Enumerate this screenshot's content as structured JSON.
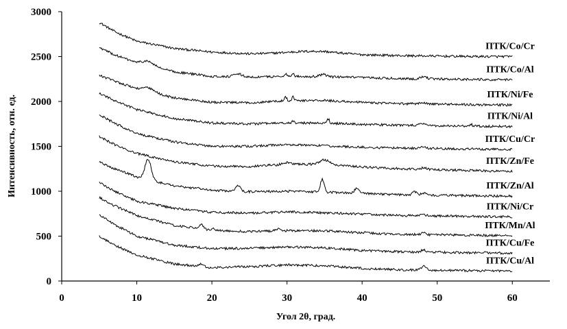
{
  "chart_data": {
    "type": "line",
    "title": "",
    "xlabel": "Угол 2θ, град.",
    "ylabel": "Интенсивность, отн. ед.",
    "xlim": [
      0,
      65
    ],
    "ylim": [
      0,
      3000
    ],
    "x_ticks": [
      0,
      10,
      20,
      30,
      40,
      50,
      60
    ],
    "y_ticks": [
      0,
      500,
      1000,
      1500,
      2000,
      2500,
      3000
    ],
    "grid": false,
    "legend": "labels placed at right end of each curve",
    "x_start": 5,
    "x_end": 60,
    "series": [
      {
        "name": "ПТК/Co/Cr",
        "background": [
          [
            5,
            2880
          ],
          [
            7,
            2780
          ],
          [
            10,
            2670
          ],
          [
            15,
            2590
          ],
          [
            20,
            2550
          ],
          [
            25,
            2530
          ],
          [
            30,
            2535
          ],
          [
            35,
            2540
          ],
          [
            40,
            2520
          ],
          [
            45,
            2510
          ],
          [
            50,
            2505
          ],
          [
            55,
            2500
          ],
          [
            60,
            2500
          ]
        ],
        "peaks": [
          [
            33,
            20,
            3
          ]
        ]
      },
      {
        "name": "ПТК/Co/Al",
        "background": [
          [
            5,
            2600
          ],
          [
            7,
            2520
          ],
          [
            10,
            2430
          ],
          [
            15,
            2330
          ],
          [
            20,
            2280
          ],
          [
            25,
            2270
          ],
          [
            30,
            2280
          ],
          [
            35,
            2275
          ],
          [
            40,
            2265
          ],
          [
            45,
            2255
          ],
          [
            50,
            2250
          ],
          [
            55,
            2245
          ],
          [
            60,
            2240
          ]
        ],
        "peaks": [
          [
            11.5,
            45,
            0.8
          ],
          [
            23.5,
            30,
            0.6
          ],
          [
            29.8,
            35,
            0.15
          ],
          [
            30.8,
            35,
            0.15
          ],
          [
            34.8,
            25,
            0.5
          ],
          [
            48.2,
            25,
            0.4
          ]
        ]
      },
      {
        "name": "ПТК/Ni/Fe",
        "background": [
          [
            5,
            2290
          ],
          [
            7,
            2230
          ],
          [
            10,
            2140
          ],
          [
            15,
            2040
          ],
          [
            20,
            1990
          ],
          [
            25,
            1985
          ],
          [
            30,
            2010
          ],
          [
            35,
            2010
          ],
          [
            40,
            1990
          ],
          [
            45,
            1975
          ],
          [
            50,
            1970
          ],
          [
            55,
            1965
          ],
          [
            60,
            1960
          ]
        ],
        "peaks": [
          [
            11.5,
            40,
            0.8
          ],
          [
            29.8,
            45,
            0.15
          ],
          [
            30.8,
            45,
            0.15
          ],
          [
            48,
            20,
            0.4
          ]
        ]
      },
      {
        "name": "ПТК/Ni/Al",
        "background": [
          [
            5,
            2090
          ],
          [
            7,
            2010
          ],
          [
            10,
            1910
          ],
          [
            15,
            1810
          ],
          [
            20,
            1760
          ],
          [
            25,
            1750
          ],
          [
            30,
            1760
          ],
          [
            35,
            1760
          ],
          [
            40,
            1745
          ],
          [
            45,
            1735
          ],
          [
            50,
            1730
          ],
          [
            55,
            1725
          ],
          [
            60,
            1720
          ]
        ],
        "peaks": [
          [
            30.8,
            20,
            0.15
          ],
          [
            35.5,
            45,
            0.15
          ],
          [
            48,
            20,
            0.4
          ],
          [
            54.5,
            20,
            0.15
          ]
        ]
      },
      {
        "name": "ПТК/Cu/Cr",
        "background": [
          [
            5,
            1850
          ],
          [
            7,
            1760
          ],
          [
            10,
            1640
          ],
          [
            15,
            1550
          ],
          [
            20,
            1500
          ],
          [
            25,
            1500
          ],
          [
            30,
            1520
          ],
          [
            35,
            1505
          ],
          [
            40,
            1490
          ],
          [
            45,
            1480
          ],
          [
            50,
            1475
          ],
          [
            55,
            1470
          ],
          [
            60,
            1465
          ]
        ],
        "peaks": [
          [
            48,
            15,
            0.4
          ]
        ]
      },
      {
        "name": "ПТК/Zn/Fe",
        "background": [
          [
            5,
            1610
          ],
          [
            7,
            1520
          ],
          [
            10,
            1420
          ],
          [
            15,
            1330
          ],
          [
            20,
            1280
          ],
          [
            25,
            1275
          ],
          [
            30,
            1300
          ],
          [
            35,
            1300
          ],
          [
            40,
            1270
          ],
          [
            45,
            1250
          ],
          [
            50,
            1240
          ],
          [
            55,
            1230
          ],
          [
            60,
            1220
          ]
        ],
        "peaks": [
          [
            29.8,
            20,
            0.5
          ],
          [
            35,
            50,
            0.6
          ],
          [
            48.2,
            15,
            0.4
          ]
        ]
      },
      {
        "name": "ПТК/Zn/Al",
        "background": [
          [
            5,
            1330
          ],
          [
            7,
            1250
          ],
          [
            10,
            1160
          ],
          [
            15,
            1060
          ],
          [
            20,
            1010
          ],
          [
            25,
            995
          ],
          [
            30,
            1000
          ],
          [
            35,
            990
          ],
          [
            40,
            975
          ],
          [
            45,
            960
          ],
          [
            50,
            955
          ],
          [
            55,
            950
          ],
          [
            60,
            945
          ]
        ],
        "peaks": [
          [
            11.5,
            230,
            0.4
          ],
          [
            18.2,
            20,
            0.2
          ],
          [
            23.5,
            70,
            0.3
          ],
          [
            34.7,
            145,
            0.25
          ],
          [
            39.3,
            55,
            0.3
          ],
          [
            47,
            35,
            0.3
          ],
          [
            48.2,
            25,
            0.3
          ]
        ]
      },
      {
        "name": "ПТК/Ni/Cr",
        "background": [
          [
            5,
            1100
          ],
          [
            7,
            1000
          ],
          [
            10,
            890
          ],
          [
            15,
            810
          ],
          [
            20,
            765
          ],
          [
            25,
            755
          ],
          [
            30,
            770
          ],
          [
            35,
            760
          ],
          [
            40,
            745
          ],
          [
            45,
            730
          ],
          [
            50,
            725
          ],
          [
            55,
            720
          ],
          [
            60,
            715
          ]
        ],
        "peaks": [
          [
            48,
            15,
            0.4
          ]
        ]
      },
      {
        "name": "ПТК/Mn/Al",
        "background": [
          [
            5,
            930
          ],
          [
            7,
            840
          ],
          [
            10,
            730
          ],
          [
            15,
            620
          ],
          [
            20,
            565
          ],
          [
            25,
            550
          ],
          [
            30,
            560
          ],
          [
            35,
            560
          ],
          [
            40,
            535
          ],
          [
            45,
            520
          ],
          [
            50,
            515
          ],
          [
            55,
            510
          ],
          [
            60,
            505
          ]
        ],
        "peaks": [
          [
            18.6,
            45,
            0.3
          ],
          [
            20.2,
            30,
            0.2
          ],
          [
            28.8,
            20,
            0.4
          ],
          [
            40.5,
            20,
            0.2
          ],
          [
            48.2,
            20,
            0.3
          ]
        ]
      },
      {
        "name": "ПТК/Cu/Fe",
        "background": [
          [
            5,
            740
          ],
          [
            7,
            630
          ],
          [
            10,
            500
          ],
          [
            15,
            400
          ],
          [
            20,
            360
          ],
          [
            25,
            365
          ],
          [
            30,
            380
          ],
          [
            35,
            370
          ],
          [
            40,
            340
          ],
          [
            45,
            325
          ],
          [
            50,
            320
          ],
          [
            55,
            315
          ],
          [
            60,
            310
          ]
        ],
        "peaks": [
          [
            48.2,
            25,
            0.3
          ]
        ]
      },
      {
        "name": "ПТК/Cu/Al",
        "background": [
          [
            5,
            500
          ],
          [
            7,
            400
          ],
          [
            10,
            290
          ],
          [
            15,
            190
          ],
          [
            20,
            150
          ],
          [
            25,
            160
          ],
          [
            30,
            180
          ],
          [
            35,
            170
          ],
          [
            40,
            140
          ],
          [
            45,
            125
          ],
          [
            50,
            120
          ],
          [
            55,
            115
          ],
          [
            60,
            110
          ]
        ],
        "peaks": [
          [
            18.5,
            25,
            0.3
          ],
          [
            48.2,
            40,
            0.3
          ]
        ]
      }
    ]
  }
}
